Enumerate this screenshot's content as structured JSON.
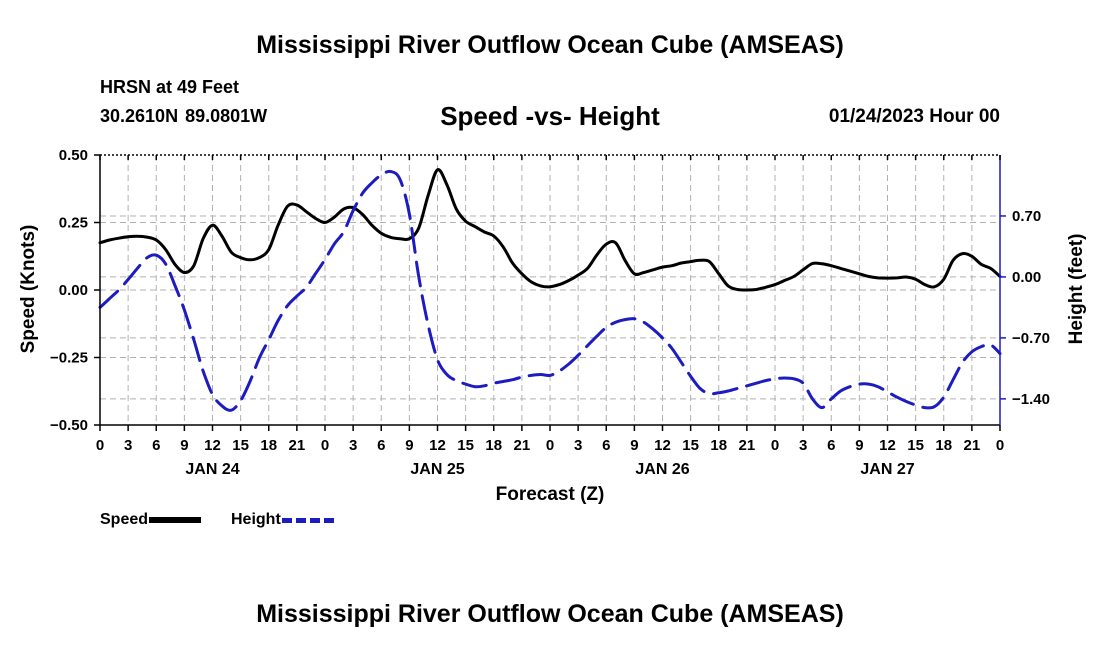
{
  "header": {
    "title": "Mississippi River Outflow Ocean Cube (AMSEAS)",
    "station": "HRSN at 49 Feet",
    "coordinates": "30.2610N  89.0801W",
    "subtitle": "Speed -vs- Height",
    "run_time": "01/24/2023 Hour 00"
  },
  "footer": {
    "title": "Mississippi River Outflow Ocean Cube (AMSEAS)"
  },
  "legend": {
    "speed_label": "Speed",
    "height_label": "Height"
  },
  "colors": {
    "speed": "#000000",
    "height": "#1c1cc0",
    "grid": "#b0b0b0"
  },
  "chart_data": {
    "type": "line",
    "title": "Speed -vs- Height",
    "xlabel": "Forecast (Z)",
    "ylabel": "Speed (Knots)",
    "y2label": "Height (feet)",
    "xlim": [
      0,
      96
    ],
    "ylim": [
      -0.5,
      0.5
    ],
    "y2lim": [
      -1.7,
      1.4
    ],
    "x_ticks": [
      0,
      3,
      6,
      9,
      12,
      15,
      18,
      21,
      24,
      27,
      30,
      33,
      36,
      39,
      42,
      45,
      48,
      51,
      54,
      57,
      60,
      63,
      66,
      69,
      72,
      75,
      78,
      81,
      84,
      87,
      90,
      93,
      96
    ],
    "x_tick_labels": [
      "0",
      "3",
      "6",
      "9",
      "12",
      "15",
      "18",
      "21",
      "0",
      "3",
      "6",
      "9",
      "12",
      "15",
      "18",
      "21",
      "0",
      "3",
      "6",
      "9",
      "12",
      "15",
      "18",
      "21",
      "0",
      "3",
      "6",
      "9",
      "12",
      "15",
      "18",
      "21",
      "0"
    ],
    "day_labels": [
      {
        "x": 12,
        "label": "JAN 24"
      },
      {
        "x": 36,
        "label": "JAN 25"
      },
      {
        "x": 60,
        "label": "JAN 26"
      },
      {
        "x": 84,
        "label": "JAN 27"
      }
    ],
    "y_ticks": [
      0.5,
      0.25,
      0.0,
      -0.25,
      -0.5
    ],
    "y_tick_labels": [
      "0.50",
      "0.25",
      "0.00",
      "−0.25",
      "−0.50"
    ],
    "y2_ticks": [
      0.7,
      0.0,
      -0.7,
      -1.4
    ],
    "y2_tick_labels": [
      "0.70",
      "0.00",
      "−0.70",
      "−1.40"
    ],
    "grid": true,
    "series": [
      {
        "name": "Speed",
        "axis": "left",
        "style": "solid",
        "x": [
          0,
          1,
          2,
          3,
          4,
          5,
          6,
          7,
          8,
          9,
          10,
          11,
          12,
          13,
          14,
          15,
          16,
          17,
          18,
          19,
          20,
          21,
          22,
          23,
          24,
          25,
          26,
          27,
          28,
          29,
          30,
          31,
          32,
          33,
          34,
          35,
          36,
          37,
          38,
          39,
          40,
          41,
          42,
          43,
          44,
          45,
          46,
          47,
          48,
          49,
          50,
          51,
          52,
          53,
          54,
          55,
          56,
          57,
          58,
          59,
          60,
          61,
          62,
          63,
          64,
          65,
          66,
          67,
          68,
          69,
          70,
          71,
          72,
          73,
          74,
          75,
          76,
          77,
          78,
          79,
          80,
          81,
          82,
          83,
          84,
          85,
          86,
          87,
          88,
          89,
          90,
          91,
          92,
          93,
          94,
          95,
          96
        ],
        "values": [
          0.175,
          0.185,
          0.192,
          0.197,
          0.199,
          0.196,
          0.185,
          0.15,
          0.095,
          0.065,
          0.09,
          0.19,
          0.24,
          0.2,
          0.14,
          0.12,
          0.112,
          0.12,
          0.15,
          0.24,
          0.31,
          0.315,
          0.29,
          0.265,
          0.25,
          0.27,
          0.3,
          0.305,
          0.28,
          0.24,
          0.21,
          0.195,
          0.19,
          0.19,
          0.23,
          0.35,
          0.445,
          0.39,
          0.3,
          0.255,
          0.235,
          0.215,
          0.2,
          0.16,
          0.1,
          0.06,
          0.03,
          0.015,
          0.012,
          0.02,
          0.035,
          0.055,
          0.08,
          0.13,
          0.17,
          0.175,
          0.11,
          0.06,
          0.065,
          0.075,
          0.085,
          0.09,
          0.1,
          0.105,
          0.11,
          0.105,
          0.06,
          0.015,
          0.002,
          0.0,
          0.002,
          0.01,
          0.02,
          0.035,
          0.05,
          0.075,
          0.098,
          0.097,
          0.09,
          0.08,
          0.07,
          0.06,
          0.05,
          0.045,
          0.044,
          0.045,
          0.048,
          0.04,
          0.02,
          0.012,
          0.04,
          0.11,
          0.135,
          0.125,
          0.095,
          0.08,
          0.05
        ]
      },
      {
        "name": "Height",
        "axis": "right",
        "style": "dashed",
        "x": [
          0,
          1,
          2,
          3,
          4,
          5,
          6,
          7,
          8,
          9,
          10,
          11,
          12,
          13,
          14,
          15,
          16,
          17,
          18,
          19,
          20,
          21,
          22,
          23,
          24,
          25,
          26,
          27,
          28,
          29,
          30,
          31,
          32,
          33,
          34,
          35,
          36,
          37,
          38,
          39,
          40,
          41,
          42,
          43,
          44,
          45,
          46,
          47,
          48,
          49,
          50,
          51,
          52,
          53,
          54,
          55,
          56,
          57,
          58,
          59,
          60,
          61,
          62,
          63,
          64,
          65,
          66,
          67,
          68,
          69,
          70,
          71,
          72,
          73,
          74,
          75,
          76,
          77,
          78,
          79,
          80,
          81,
          82,
          83,
          84,
          85,
          86,
          87,
          88,
          89,
          90,
          91,
          92,
          93,
          94,
          95,
          96
        ],
        "values": [
          -0.35,
          -0.25,
          -0.15,
          -0.03,
          0.1,
          0.22,
          0.25,
          0.15,
          -0.1,
          -0.38,
          -0.72,
          -1.08,
          -1.35,
          -1.48,
          -1.53,
          -1.42,
          -1.2,
          -0.93,
          -0.72,
          -0.5,
          -0.33,
          -0.22,
          -0.12,
          0.04,
          0.2,
          0.38,
          0.52,
          0.76,
          0.96,
          1.08,
          1.17,
          1.21,
          1.12,
          0.72,
          0.0,
          -0.55,
          -0.95,
          -1.12,
          -1.19,
          -1.23,
          -1.26,
          -1.25,
          -1.22,
          -1.2,
          -1.18,
          -1.15,
          -1.13,
          -1.12,
          -1.13,
          -1.08,
          -1.0,
          -0.9,
          -0.79,
          -0.68,
          -0.58,
          -0.52,
          -0.49,
          -0.48,
          -0.52,
          -0.6,
          -0.7,
          -0.82,
          -0.98,
          -1.14,
          -1.28,
          -1.34,
          -1.33,
          -1.31,
          -1.28,
          -1.25,
          -1.22,
          -1.19,
          -1.17,
          -1.16,
          -1.17,
          -1.22,
          -1.4,
          -1.5,
          -1.4,
          -1.31,
          -1.26,
          -1.23,
          -1.23,
          -1.26,
          -1.32,
          -1.38,
          -1.43,
          -1.47,
          -1.5,
          -1.49,
          -1.38,
          -1.18,
          -0.98,
          -0.86,
          -0.8,
          -0.78,
          -0.88
        ]
      }
    ]
  }
}
